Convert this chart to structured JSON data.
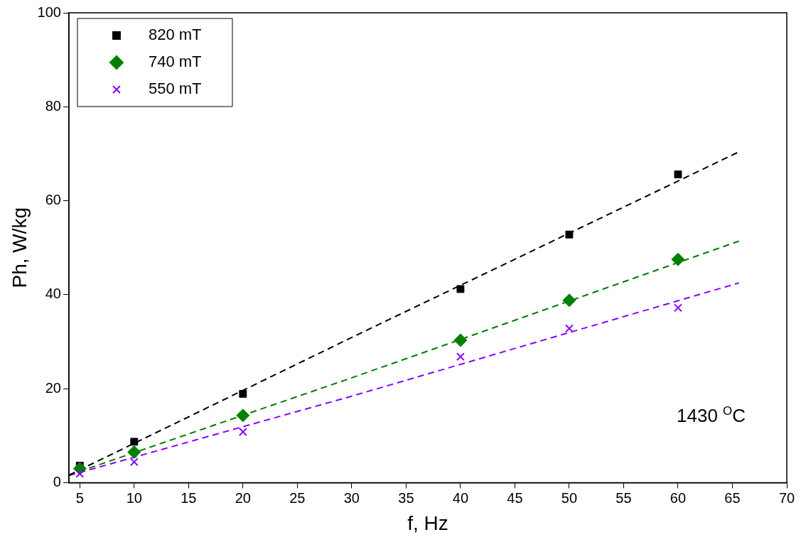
{
  "chart_data": {
    "type": "scatter",
    "xlabel": "f, Hz",
    "ylabel": "Ph, W/kg",
    "x": [
      5,
      10,
      20,
      40,
      50,
      60
    ],
    "xlim": [
      4,
      70
    ],
    "xticks": [
      5,
      10,
      15,
      20,
      25,
      30,
      35,
      40,
      45,
      50,
      55,
      60,
      65,
      70
    ],
    "ylim": [
      0,
      100
    ],
    "yticks": [
      0,
      20,
      40,
      60,
      80,
      100
    ],
    "grid": false,
    "legend": "top left",
    "annotations": [
      "1430 $^{O}$C"
    ],
    "series": [
      {
        "name": "820 mT",
        "color": "#000000",
        "marker": "square",
        "values": [
          3.6,
          8.7,
          18.9,
          41.2,
          52.8,
          65.6
        ]
      },
      {
        "name": "740 mT",
        "color": "#008000",
        "marker": "diamond",
        "values": [
          3.0,
          6.5,
          14.3,
          30.3,
          38.8,
          47.5
        ]
      },
      {
        "name": "550 mT",
        "color": "#8b00ff",
        "marker": "cross",
        "values": [
          1.9,
          4.4,
          10.8,
          26.8,
          32.8,
          37.2
        ]
      },
      {
        "type": "line",
        "line_style": "dashed",
        "color": "#000000",
        "x": [
          4,
          30,
          65.6
        ],
        "values": [
          1.6,
          30.9,
          70.4
        ]
      },
      {
        "type": "line",
        "line_style": "dashed",
        "color": "#008000",
        "x": [
          4,
          30,
          65.6
        ],
        "values": [
          1.6,
          22.3,
          51.4
        ]
      },
      {
        "type": "line",
        "line_style": "dashed",
        "color": "#8b00ff",
        "x": [
          4,
          30,
          65.6
        ],
        "values": [
          1.5,
          18.4,
          42.5
        ]
      }
    ]
  }
}
